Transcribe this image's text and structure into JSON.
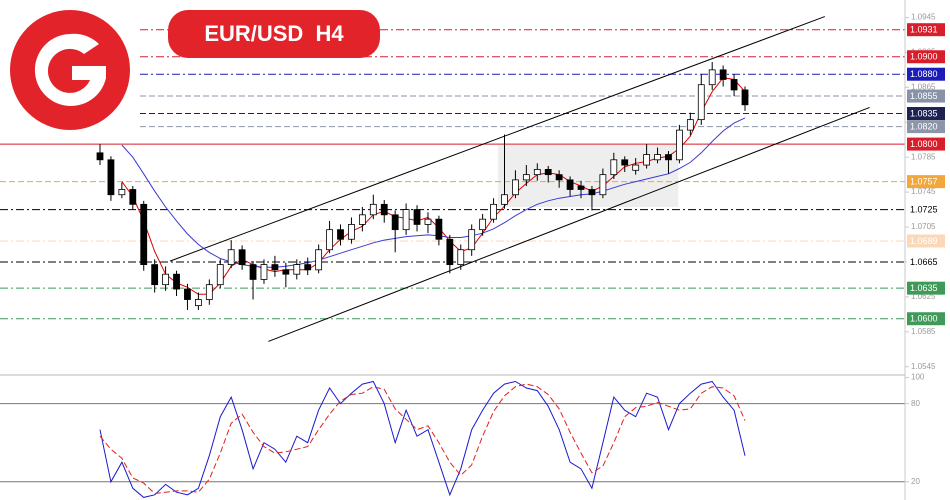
{
  "chart_data": {
    "type": "candlestick",
    "title": "EUR/USD  H4",
    "ylim": [
      1.0539,
      1.0965
    ],
    "yticks": [
      1.0545,
      1.0585,
      1.0625,
      1.0665,
      1.0705,
      1.0745,
      1.0785,
      1.0825,
      1.0865,
      1.0905,
      1.0945
    ],
    "up_color": "#ffffff",
    "down_color": "#000000",
    "open": [
      1.079,
      1.0782,
      1.0742,
      1.0748,
      1.0731,
      1.0662,
      1.0639,
      1.0651,
      1.0634,
      1.0615,
      1.0622,
      1.0639,
      1.0662,
      1.0679,
      1.0662,
      1.0645,
      1.0662,
      1.0656,
      1.0651,
      1.0662,
      1.0656,
      1.0679,
      1.0702,
      1.0691,
      1.0708,
      1.0719,
      1.0731,
      1.0719,
      1.0702,
      1.0725,
      1.0708,
      1.0714,
      1.0691,
      1.0662,
      1.0679,
      1.0702,
      1.0714,
      1.0731,
      1.0742,
      1.0759,
      1.0765,
      1.0771,
      1.0765,
      1.0759,
      1.0752,
      1.0748,
      1.0742,
      1.0765,
      1.0782,
      1.077,
      1.0776,
      1.0782,
      1.0788,
      1.0782,
      1.0816,
      1.0828,
      1.0868,
      1.0885,
      1.0874,
      1.0862
    ],
    "high": [
      1.08,
      1.0786,
      1.0756,
      1.0752,
      1.0735,
      1.0668,
      1.066,
      1.0655,
      1.064,
      1.063,
      1.0645,
      1.0668,
      1.069,
      1.0684,
      1.0666,
      1.0668,
      1.0672,
      1.0664,
      1.0668,
      1.067,
      1.0685,
      1.0712,
      1.0708,
      1.0716,
      1.0728,
      1.0742,
      1.0736,
      1.0724,
      1.0732,
      1.073,
      1.0722,
      1.0718,
      1.0696,
      1.0685,
      1.0708,
      1.072,
      1.0738,
      1.0811,
      1.077,
      1.0776,
      1.0778,
      1.0775,
      1.077,
      1.0763,
      1.0758,
      1.0752,
      1.0772,
      1.079,
      1.0786,
      1.0784,
      1.08,
      1.0796,
      1.0792,
      1.0822,
      1.0836,
      1.088,
      1.0894,
      1.089,
      1.088,
      1.0866
    ],
    "low": [
      1.0776,
      1.0735,
      1.0738,
      1.0725,
      1.0655,
      1.063,
      1.0632,
      1.0626,
      1.061,
      1.061,
      1.0616,
      1.0635,
      1.0658,
      1.0656,
      1.0622,
      1.064,
      1.0648,
      1.0636,
      1.0645,
      1.065,
      1.0652,
      1.0675,
      1.0684,
      1.0686,
      1.07,
      1.0714,
      1.071,
      1.0676,
      1.0696,
      1.07,
      1.0698,
      1.0684,
      1.0652,
      1.0656,
      1.0672,
      1.0695,
      1.071,
      1.0726,
      1.0738,
      1.0752,
      1.0758,
      1.0756,
      1.075,
      1.074,
      1.0738,
      1.0724,
      1.0738,
      1.076,
      1.0768,
      1.0765,
      1.0772,
      1.0778,
      1.0766,
      1.0778,
      1.081,
      1.0822,
      1.0862,
      1.0866,
      1.0855,
      1.0838
    ],
    "close": [
      1.0782,
      1.0742,
      1.0748,
      1.0731,
      1.0662,
      1.0639,
      1.0651,
      1.0634,
      1.0622,
      1.0622,
      1.0639,
      1.0662,
      1.0679,
      1.0662,
      1.0645,
      1.0662,
      1.0656,
      1.0651,
      1.0662,
      1.0656,
      1.0679,
      1.0702,
      1.0691,
      1.0708,
      1.0719,
      1.0731,
      1.0719,
      1.0702,
      1.0725,
      1.0708,
      1.0714,
      1.0691,
      1.0662,
      1.0679,
      1.0702,
      1.0714,
      1.0731,
      1.0742,
      1.0759,
      1.0765,
      1.0771,
      1.0765,
      1.0759,
      1.0748,
      1.0748,
      1.0742,
      1.0765,
      1.0782,
      1.0776,
      1.0776,
      1.0788,
      1.0788,
      1.0782,
      1.0816,
      1.0828,
      1.0868,
      1.0885,
      1.0874,
      1.0862,
      1.0845
    ],
    "moving_averages": [
      {
        "color": "#e00000",
        "values": [
          null,
          null,
          1.0757,
          1.074,
          1.0712,
          1.0677,
          1.0651,
          1.0641,
          1.0636,
          1.0628,
          1.0628,
          1.0641,
          1.066,
          1.0668,
          1.0662,
          1.0657,
          1.0654,
          1.0656,
          1.0656,
          1.0656,
          1.0664,
          1.0679,
          1.0691,
          1.07,
          1.0706,
          1.0719,
          1.0723,
          1.0717,
          1.0715,
          1.0712,
          1.0716,
          1.0704,
          1.0689,
          1.0677,
          1.0681,
          1.0698,
          1.0716,
          1.0729,
          1.0744,
          1.0755,
          1.0765,
          1.0767,
          1.0765,
          1.0757,
          1.0752,
          1.0746,
          1.0752,
          1.0763,
          1.0774,
          1.0778,
          1.078,
          1.0784,
          1.0786,
          1.0795,
          1.0809,
          1.0837,
          1.086,
          1.0876,
          1.0874,
          1.086
        ]
      },
      {
        "color": "#3a3ad8",
        "values": [
          null,
          null,
          1.0799,
          1.0785,
          1.0766,
          1.0746,
          1.0728,
          1.0712,
          1.0697,
          1.0685,
          1.0676,
          1.0669,
          1.0665,
          1.0662,
          1.066,
          1.0659,
          1.0659,
          1.066,
          1.0662,
          1.0664,
          1.0667,
          1.0671,
          1.0675,
          1.0679,
          1.0683,
          1.0687,
          1.069,
          1.0692,
          1.0694,
          1.0695,
          1.0696,
          1.0695,
          1.0693,
          1.0693,
          1.0695,
          1.0698,
          1.0703,
          1.071,
          1.0718,
          1.0725,
          1.0731,
          1.0735,
          1.0738,
          1.074,
          1.0742,
          1.0743,
          1.0746,
          1.075,
          1.0754,
          1.0757,
          1.076,
          1.0763,
          1.0766,
          1.0772,
          1.0779,
          1.079,
          1.0803,
          1.0815,
          1.0824,
          1.083
        ]
      }
    ],
    "trend_lines": [
      {
        "x": [
          6.4,
          66.3
        ],
        "y": [
          1.0666,
          1.0946
        ]
      },
      {
        "x": [
          15.4,
          70.4
        ],
        "y": [
          1.0574,
          1.0842
        ]
      }
    ],
    "zone": {
      "x": [
        36.4,
        52.9
      ],
      "y": [
        1.0799,
        1.0728
      ]
    },
    "levels": [
      {
        "value": 1.0931,
        "color": "#d81e2a",
        "text_color": "#ffffff",
        "style": "dashdot"
      },
      {
        "value": 1.09,
        "label": "1.0900",
        "color": "#d81e2a",
        "text_color": "#ffffff",
        "style": "dashdot"
      },
      {
        "value": 1.088,
        "label": "1.0880",
        "color": "#1c1cb8",
        "text_color": "#ffffff",
        "style": "dashdot"
      },
      {
        "value": 1.0855,
        "color": "#8893a8",
        "text_color": "#ffffff",
        "style": "dashed"
      },
      {
        "value": 1.0835,
        "color": "#1e2250",
        "text_color": "#ffffff",
        "style": "dashed"
      },
      {
        "value": 1.082,
        "label": "1.0820",
        "color": "#8c96a8",
        "text_color": "#ffffff",
        "style": "dashed"
      },
      {
        "value": 1.08,
        "label": "1.0800",
        "color": "#d81e2a",
        "text_color": "#ffffff",
        "style": "solid"
      },
      {
        "value": 1.0757,
        "color": "#f3a63a",
        "text_color": "#ffffff",
        "style": "dashed"
      },
      {
        "value": 1.0725,
        "color": "#000000",
        "text_color": "#000000",
        "style": "dashdot"
      },
      {
        "value": 1.0689,
        "color": "#fbd9b8",
        "text_color": "#ffffff",
        "style": "dashdot"
      },
      {
        "value": 1.0665,
        "color": "#000000",
        "text_color": "#000000",
        "style": "dashdot"
      },
      {
        "value": 1.0635,
        "color": "#3f9a5a",
        "text_color": "#ffffff",
        "style": "dashdot"
      },
      {
        "value": 1.06,
        "label": "1.0600",
        "color": "#3f9a5a",
        "text_color": "#ffffff",
        "style": "dashdot"
      }
    ],
    "oscillator": {
      "ylim": [
        6,
        102
      ],
      "yticks": [
        100,
        80,
        20
      ],
      "levels": [
        80,
        20
      ],
      "series": [
        {
          "color": "#1a1ad0",
          "style": "solid",
          "values": [
            60,
            20,
            35,
            15,
            8,
            10,
            18,
            12,
            10,
            15,
            40,
            70,
            85,
            60,
            30,
            50,
            45,
            35,
            55,
            50,
            75,
            92,
            80,
            88,
            95,
            97,
            80,
            50,
            75,
            55,
            60,
            35,
            10,
            30,
            60,
            75,
            88,
            95,
            97,
            92,
            90,
            78,
            60,
            35,
            30,
            15,
            50,
            85,
            75,
            70,
            88,
            85,
            60,
            80,
            88,
            95,
            97,
            85,
            75,
            40
          ]
        },
        {
          "color": "#e02020",
          "style": "dashed",
          "values": [
            55,
            45,
            38,
            23,
            19,
            11,
            12,
            13,
            13,
            12,
            22,
            42,
            65,
            72,
            58,
            47,
            42,
            43,
            45,
            47,
            60,
            72,
            82,
            87,
            88,
            93,
            91,
            76,
            68,
            60,
            63,
            50,
            35,
            25,
            33,
            55,
            74,
            86,
            93,
            95,
            93,
            87,
            76,
            58,
            42,
            27,
            32,
            50,
            70,
            77,
            78,
            81,
            78,
            75,
            76,
            88,
            93,
            92,
            86,
            67
          ]
        }
      ]
    }
  }
}
